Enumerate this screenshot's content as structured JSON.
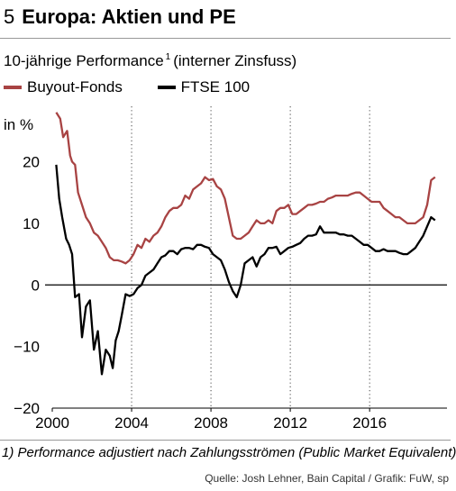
{
  "figure": {
    "number": "5",
    "title": "Europa: Aktien und PE",
    "subtitle": "10-jährige Performance",
    "subtitle_footnote_mark": "1",
    "subtitle_suffix": "(interner Zinsfuss)",
    "footnote": "1) Performance adjustiert nach Zahlungsströmen (Public Market Equivalent)",
    "source": "Quelle: Josh Lehner, Bain Capital / Grafik: FuW, sp"
  },
  "chart_data": {
    "type": "line",
    "ylabel": "in %",
    "xlim": [
      2000,
      2019.9
    ],
    "ylim": [
      -20,
      29
    ],
    "x_ticks": [
      2000,
      2004,
      2008,
      2012,
      2016
    ],
    "y_ticks": [
      -20,
      -10,
      0,
      10,
      20
    ],
    "y_tick_labels": [
      "−20",
      "−10",
      "0",
      "10",
      "20"
    ],
    "zero_line": true,
    "grid": "vertical-dotted",
    "legend_position": "top-left",
    "series": [
      {
        "name": "Buyout-Fonds",
        "color": "#a84343",
        "x": [
          2000.2,
          2000.4,
          2000.55,
          2000.75,
          2000.9,
          2001.0,
          2001.15,
          2001.3,
          2001.5,
          2001.7,
          2001.9,
          2002.1,
          2002.3,
          2002.5,
          2002.7,
          2002.9,
          2003.1,
          2003.3,
          2003.5,
          2003.7,
          2003.9,
          2004.1,
          2004.3,
          2004.5,
          2004.7,
          2004.9,
          2005.1,
          2005.3,
          2005.5,
          2005.7,
          2005.9,
          2006.1,
          2006.3,
          2006.5,
          2006.7,
          2006.9,
          2007.1,
          2007.3,
          2007.5,
          2007.7,
          2007.9,
          2008.1,
          2008.3,
          2008.5,
          2008.7,
          2008.9,
          2009.1,
          2009.3,
          2009.5,
          2009.7,
          2009.9,
          2010.1,
          2010.3,
          2010.5,
          2010.7,
          2010.9,
          2011.1,
          2011.3,
          2011.5,
          2011.7,
          2011.9,
          2012.1,
          2012.3,
          2012.5,
          2012.7,
          2012.9,
          2013.1,
          2013.3,
          2013.5,
          2013.7,
          2013.9,
          2014.1,
          2014.3,
          2014.5,
          2014.7,
          2014.9,
          2015.1,
          2015.3,
          2015.5,
          2015.7,
          2015.9,
          2016.1,
          2016.3,
          2016.5,
          2016.7,
          2016.9,
          2017.1,
          2017.3,
          2017.5,
          2017.7,
          2017.9,
          2018.1,
          2018.3,
          2018.5,
          2018.7,
          2018.9,
          2019.1,
          2019.3
        ],
        "values": [
          28.0,
          27.0,
          24.0,
          25.0,
          21.0,
          20.0,
          19.5,
          15.0,
          13.0,
          11.0,
          10.0,
          8.5,
          8.0,
          7.0,
          6.0,
          4.5,
          4.0,
          4.0,
          3.8,
          3.5,
          4.0,
          5.0,
          6.5,
          6.0,
          7.5,
          7.0,
          8.0,
          8.5,
          9.5,
          11.0,
          12.0,
          12.5,
          12.5,
          13.0,
          14.5,
          14.0,
          15.5,
          16.0,
          16.5,
          17.5,
          17.0,
          17.2,
          16.0,
          15.5,
          14.0,
          11.0,
          8.0,
          7.5,
          7.5,
          8.0,
          8.5,
          9.5,
          10.5,
          10.0,
          10.0,
          10.5,
          10.0,
          12.0,
          12.5,
          12.5,
          13.0,
          11.5,
          11.5,
          12.0,
          12.5,
          13.0,
          13.0,
          13.2,
          13.5,
          13.5,
          14.0,
          14.2,
          14.5,
          14.5,
          14.5,
          14.5,
          14.8,
          15.0,
          15.0,
          14.5,
          14.0,
          13.5,
          13.5,
          13.5,
          12.5,
          12.0,
          11.5,
          11.0,
          11.0,
          10.5,
          10.0,
          10.0,
          10.0,
          10.5,
          11.0,
          13.0,
          17.0,
          17.5
        ]
      },
      {
        "name": "FTSE 100",
        "color": "#000000",
        "x": [
          2000.2,
          2000.35,
          2000.5,
          2000.7,
          2000.85,
          2001.0,
          2001.15,
          2001.35,
          2001.5,
          2001.7,
          2001.9,
          2002.1,
          2002.3,
          2002.5,
          2002.7,
          2002.9,
          2003.05,
          2003.2,
          2003.35,
          2003.5,
          2003.7,
          2003.9,
          2004.1,
          2004.3,
          2004.5,
          2004.7,
          2004.9,
          2005.1,
          2005.3,
          2005.5,
          2005.7,
          2005.9,
          2006.1,
          2006.3,
          2006.5,
          2006.7,
          2006.9,
          2007.1,
          2007.3,
          2007.5,
          2007.7,
          2007.9,
          2008.1,
          2008.3,
          2008.5,
          2008.7,
          2008.9,
          2009.1,
          2009.3,
          2009.5,
          2009.7,
          2009.9,
          2010.1,
          2010.3,
          2010.5,
          2010.7,
          2010.9,
          2011.1,
          2011.3,
          2011.5,
          2011.7,
          2011.9,
          2012.1,
          2012.3,
          2012.5,
          2012.7,
          2012.9,
          2013.1,
          2013.3,
          2013.5,
          2013.7,
          2013.9,
          2014.1,
          2014.3,
          2014.5,
          2014.7,
          2014.9,
          2015.1,
          2015.3,
          2015.5,
          2015.7,
          2015.9,
          2016.1,
          2016.3,
          2016.5,
          2016.7,
          2016.9,
          2017.1,
          2017.3,
          2017.5,
          2017.7,
          2017.9,
          2018.1,
          2018.3,
          2018.5,
          2018.7,
          2018.9,
          2019.1,
          2019.3
        ],
        "values": [
          19.5,
          14.0,
          11.0,
          7.5,
          6.5,
          5.0,
          -2.0,
          -1.5,
          -8.5,
          -3.5,
          -2.5,
          -10.5,
          -7.5,
          -14.5,
          -10.5,
          -11.5,
          -13.5,
          -9.0,
          -7.5,
          -5.0,
          -1.5,
          -1.8,
          -1.5,
          -0.5,
          0.0,
          1.5,
          2.0,
          2.5,
          3.5,
          4.5,
          4.8,
          5.5,
          5.5,
          5.0,
          5.8,
          6.0,
          6.0,
          5.8,
          6.5,
          6.5,
          6.2,
          6.0,
          5.0,
          4.5,
          4.0,
          2.5,
          0.5,
          -1.0,
          -2.0,
          0.0,
          3.5,
          4.0,
          4.5,
          3.0,
          4.5,
          5.0,
          6.0,
          6.0,
          6.2,
          5.0,
          5.5,
          6.0,
          6.2,
          6.5,
          6.8,
          7.5,
          8.0,
          8.0,
          8.2,
          9.5,
          8.5,
          8.5,
          8.5,
          8.5,
          8.2,
          8.2,
          8.0,
          8.0,
          7.5,
          7.0,
          6.5,
          6.5,
          6.0,
          5.5,
          5.5,
          5.8,
          5.5,
          5.5,
          5.5,
          5.2,
          5.0,
          5.0,
          5.5,
          6.0,
          7.0,
          8.0,
          9.5,
          11.0,
          10.5
        ]
      }
    ]
  }
}
